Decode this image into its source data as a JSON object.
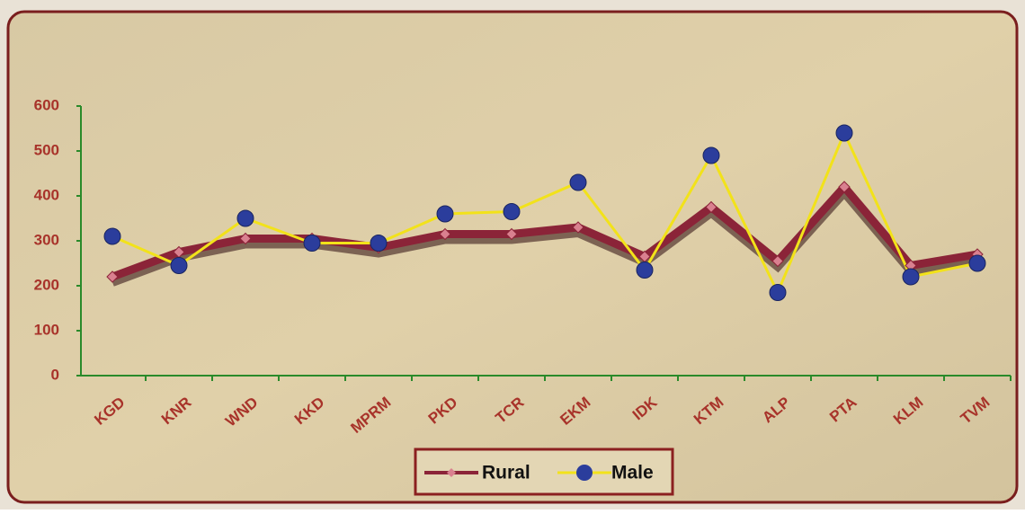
{
  "chart_data": {
    "type": "line",
    "categories": [
      "KGD",
      "KNR",
      "WND",
      "KKD",
      "MPRM",
      "PKD",
      "TCR",
      "EKM",
      "IDK",
      "KTM",
      "ALP",
      "PTA",
      "KLM",
      "TVM"
    ],
    "series": [
      {
        "name": "Rural",
        "color": "#8b2438",
        "values": [
          220,
          275,
          305,
          305,
          285,
          315,
          315,
          330,
          265,
          375,
          255,
          420,
          245,
          270
        ]
      },
      {
        "name": "Male",
        "color": "#f2e21a",
        "marker_color": "#2b3d9c",
        "values": [
          310,
          245,
          350,
          295,
          295,
          360,
          365,
          430,
          235,
          490,
          185,
          540,
          220,
          250
        ]
      }
    ],
    "ylim": [
      0,
      600
    ],
    "yticks": [
      0,
      100,
      200,
      300,
      400,
      500,
      600
    ],
    "grid": false,
    "legend": "bottom"
  }
}
